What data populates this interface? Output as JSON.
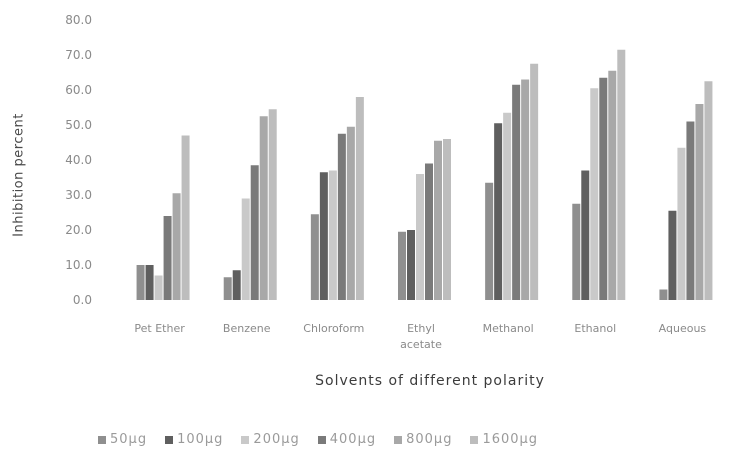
{
  "chart_data": {
    "type": "bar",
    "title": "",
    "xlabel": "Solvents of different polarity",
    "ylabel": "Inhibition percent",
    "ylim": [
      0,
      80
    ],
    "ytick_labels": [
      "0.0",
      "10.0",
      "20.0",
      "30.0",
      "40.0",
      "50.0",
      "60.0",
      "70.0",
      "80.0"
    ],
    "categories": [
      [
        "Pet Ether"
      ],
      [
        "Benzene"
      ],
      [
        "Chloroform"
      ],
      [
        "Ethyl",
        "acetate"
      ],
      [
        "Methanol"
      ],
      [
        "Ethanol"
      ],
      [
        "Aqueous"
      ]
    ],
    "legend_position": "bottom",
    "grid": false,
    "series": [
      {
        "name": "50µg",
        "color": "#8f8f8f",
        "values": [
          10.0,
          6.5,
          24.5,
          19.5,
          33.5,
          27.5,
          3.0
        ]
      },
      {
        "name": "100µg",
        "color": "#5f5f5f",
        "values": [
          10.0,
          8.5,
          36.5,
          20.0,
          50.5,
          37.0,
          25.5
        ]
      },
      {
        "name": "200µg",
        "color": "#c9c9c9",
        "values": [
          7.0,
          29.0,
          37.0,
          36.0,
          53.5,
          60.5,
          43.5
        ]
      },
      {
        "name": "400µg",
        "color": "#7a7a7a",
        "values": [
          24.0,
          38.5,
          47.5,
          39.0,
          61.5,
          63.5,
          51.0
        ]
      },
      {
        "name": "800µg",
        "color": "#a8a8a8",
        "values": [
          30.5,
          52.5,
          49.5,
          45.5,
          63.0,
          65.5,
          56.0
        ]
      },
      {
        "name": "1600µg",
        "color": "#bdbdbd",
        "values": [
          47.0,
          54.5,
          58.0,
          46.0,
          67.5,
          71.5,
          62.5
        ]
      }
    ]
  },
  "legend": {
    "items": [
      {
        "label": "50µg",
        "color": "#8f8f8f"
      },
      {
        "label": "100µg",
        "color": "#5f5f5f"
      },
      {
        "label": "200µg",
        "color": "#c9c9c9"
      },
      {
        "label": "400µg",
        "color": "#7a7a7a"
      },
      {
        "label": "800µg",
        "color": "#a8a8a8"
      },
      {
        "label": "1600µg",
        "color": "#bdbdbd"
      }
    ]
  }
}
